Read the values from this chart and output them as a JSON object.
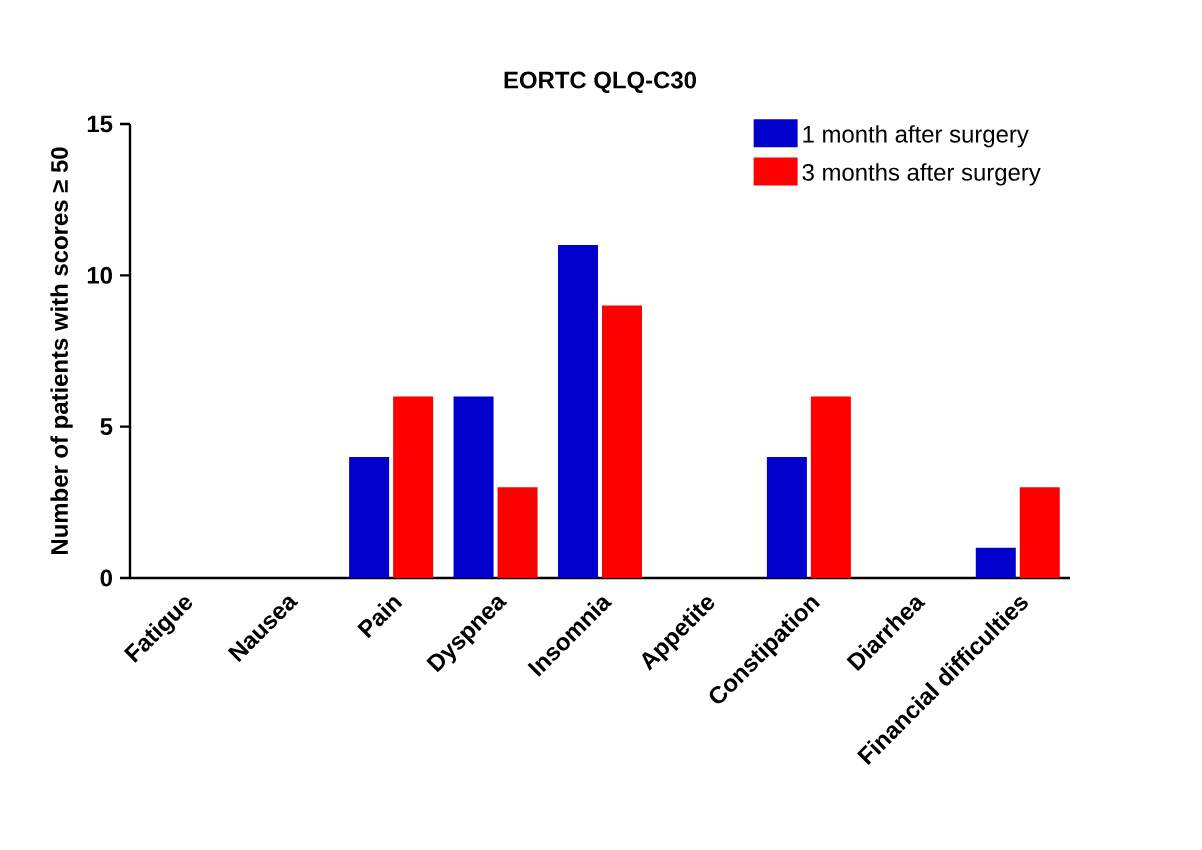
{
  "chart_data": {
    "type": "bar",
    "title": "EORTC QLQ-C30",
    "ylabel": "Number of patients with scores ≥ 50",
    "categories": [
      "Fatigue",
      "Nausea",
      "Pain",
      "Dyspnea",
      "Insomnia",
      "Appetite",
      "Constipation",
      "Diarrhea",
      "Financial difficulties"
    ],
    "series": [
      {
        "name": "1 month after surgery",
        "color": "#0000cc",
        "values": [
          0,
          0,
          4,
          6,
          11,
          0,
          4,
          0,
          1
        ]
      },
      {
        "name": "3 months after surgery",
        "color": "#ff0000",
        "values": [
          0,
          0,
          6,
          3,
          9,
          0,
          6,
          0,
          3
        ]
      }
    ],
    "ylim": [
      0,
      15
    ],
    "yticks": [
      0,
      5,
      10,
      15
    ],
    "grid": false,
    "legend": "top right"
  }
}
